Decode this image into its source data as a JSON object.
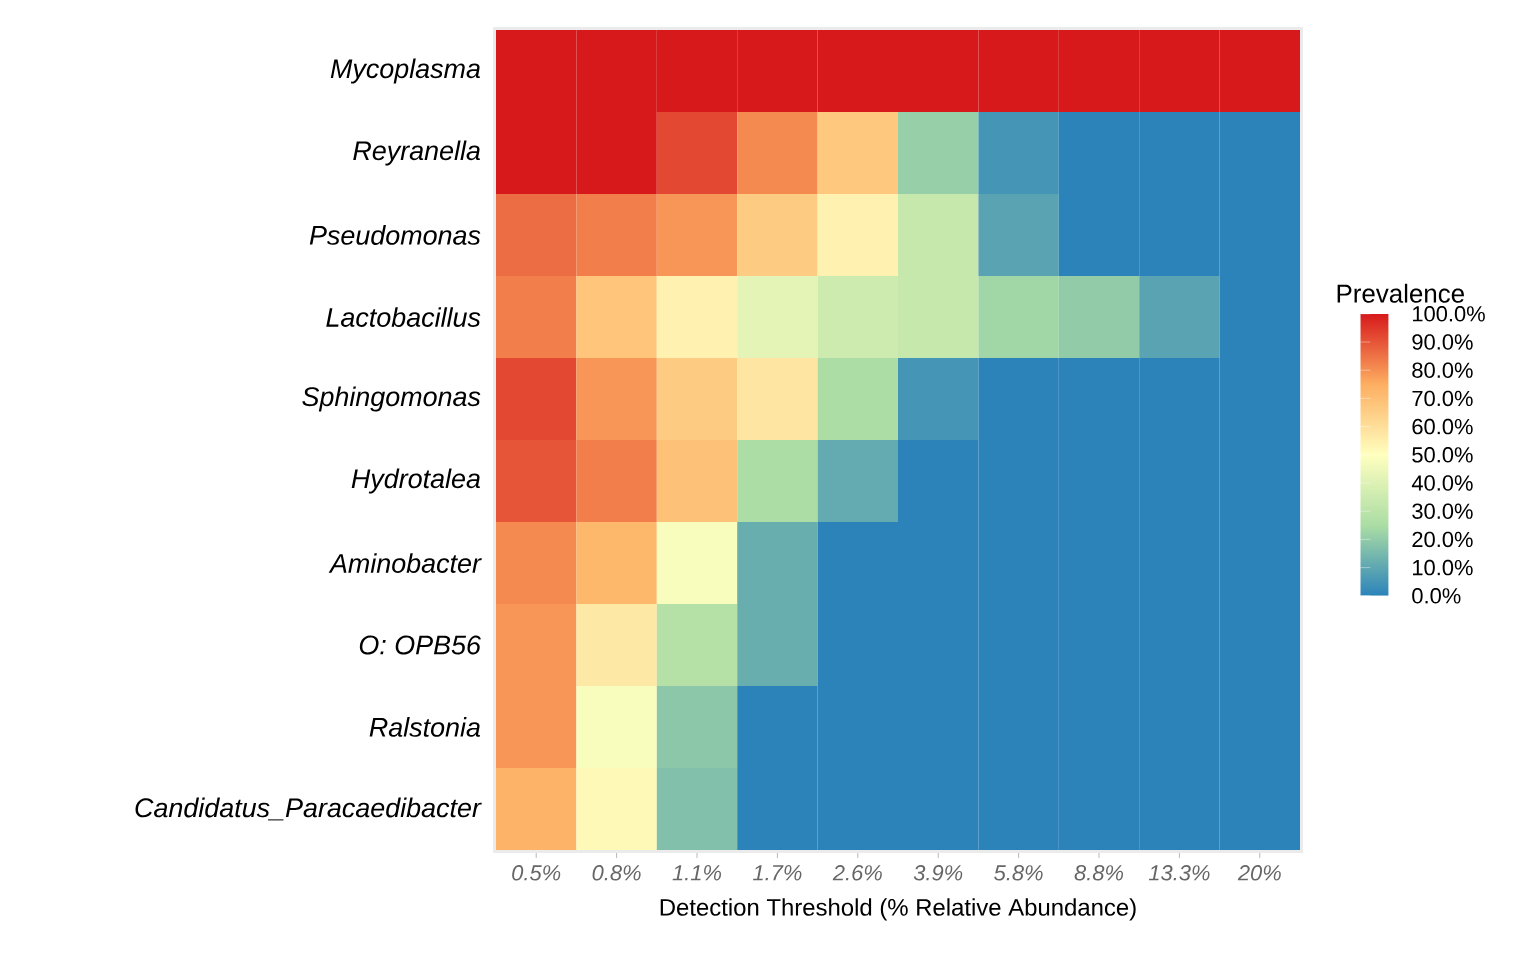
{
  "chart_data": {
    "type": "heatmap",
    "xlabel": "Detection Threshold (% Relative Abundance)",
    "clabel": "Prevalence",
    "categories": [
      "0.5%",
      "0.8%",
      "1.1%",
      "1.7%",
      "2.6%",
      "3.9%",
      "5.8%",
      "8.8%",
      "13.3%",
      "20%"
    ],
    "y_categories": [
      "Mycoplasma",
      "Reyranella",
      "Pseudomonas",
      "Lactobacillus",
      "Sphingomonas",
      "Hydrotalea",
      "Aminobacter",
      "O: OPB56",
      "Ralstonia",
      "Candidatus_Paracaedibacter"
    ],
    "cells": [
      [
        100,
        100,
        100,
        100,
        100,
        100,
        100,
        100,
        100,
        100
      ],
      [
        100,
        100,
        92,
        81,
        67,
        21,
        5,
        0,
        0,
        0
      ],
      [
        86,
        83,
        79,
        66,
        54,
        33,
        9,
        0,
        0,
        0
      ],
      [
        83,
        68,
        54,
        42,
        35,
        33,
        23,
        20,
        9,
        0
      ],
      [
        92,
        79,
        66,
        58,
        25,
        5,
        0,
        0,
        0,
        0
      ],
      [
        90,
        83,
        69,
        25,
        11,
        0,
        0,
        0,
        0,
        0
      ],
      [
        81,
        72,
        48,
        12,
        0,
        0,
        0,
        0,
        0,
        0
      ],
      [
        79,
        57,
        28,
        12,
        0,
        0,
        0,
        0,
        0,
        0
      ],
      [
        79,
        48,
        19,
        0,
        0,
        0,
        0,
        0,
        0,
        0
      ],
      [
        73,
        52,
        17,
        0,
        0,
        0,
        0,
        0,
        0,
        0
      ]
    ],
    "clim": [
      0,
      100
    ],
    "cticks": [
      {
        "value": 0,
        "label": "0.0%"
      },
      {
        "value": 10,
        "label": "10.0%"
      },
      {
        "value": 20,
        "label": "20.0%"
      },
      {
        "value": 30,
        "label": "30.0%"
      },
      {
        "value": 40,
        "label": "40.0%"
      },
      {
        "value": 50,
        "label": "50.0%"
      },
      {
        "value": 60,
        "label": "60.0%"
      },
      {
        "value": 70,
        "label": "70.0%"
      },
      {
        "value": 80,
        "label": "80.0%"
      },
      {
        "value": 90,
        "label": "90.0%"
      },
      {
        "value": 100,
        "label": "100.0%"
      }
    ]
  }
}
